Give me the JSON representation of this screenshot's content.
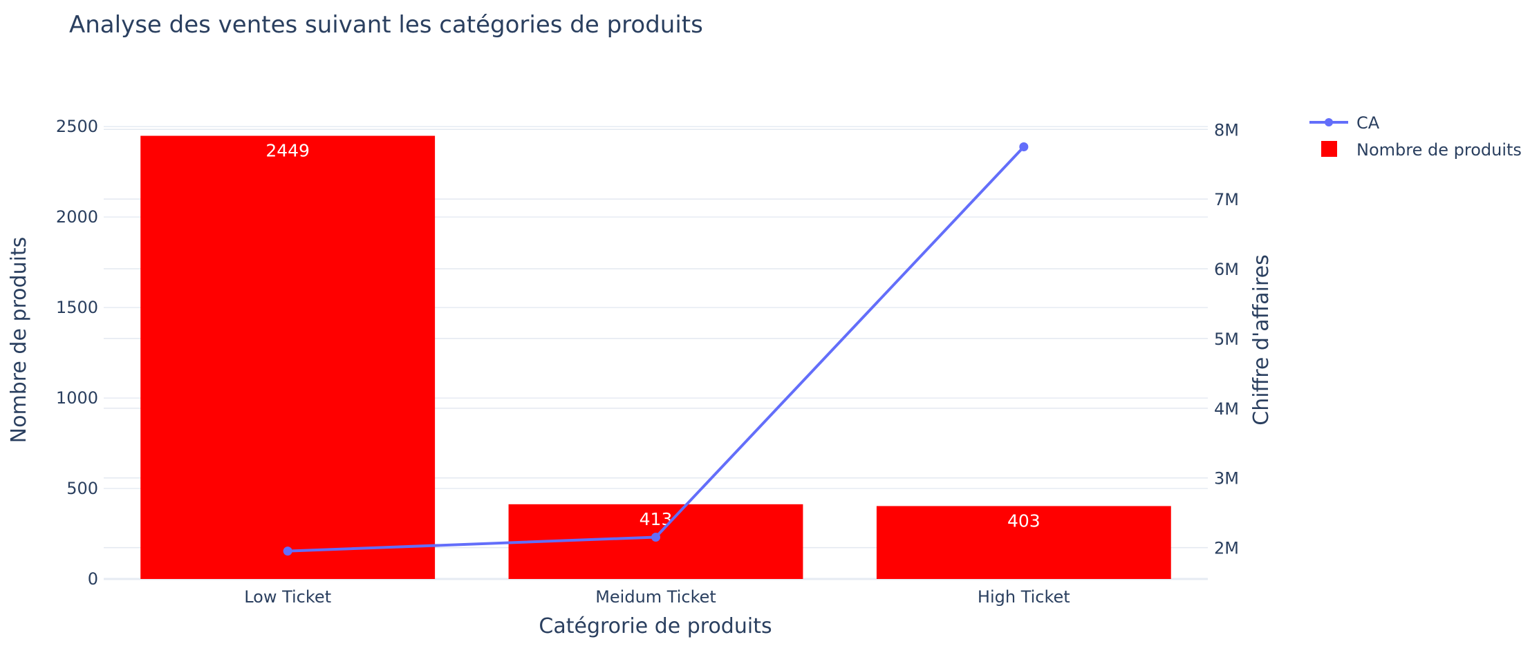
{
  "chart_data": {
    "type": "bar",
    "title": "Analyse des ventes suivant les catégories de produits",
    "xlabel": "Catégrorie de produits",
    "ylabel": "Nombre de produits",
    "y2label": "Chiffre d'affaires",
    "categories": [
      "Low Ticket",
      "Meidum Ticket",
      "High Ticket"
    ],
    "ylim": [
      0,
      2600
    ],
    "y2lim": [
      1550000,
      8300000
    ],
    "yticks": [
      0,
      500,
      1000,
      1500,
      2000,
      2500
    ],
    "yticklabels": [
      "0",
      "500",
      "1000",
      "1500",
      "2000",
      "2500"
    ],
    "y2ticks": [
      2000000,
      3000000,
      4000000,
      5000000,
      6000000,
      7000000,
      8000000
    ],
    "y2ticklabels": [
      "2M",
      "3M",
      "4M",
      "5M",
      "6M",
      "7M",
      "8M"
    ],
    "grid": true,
    "legend_position": "top-right",
    "series": [
      {
        "name": "CA",
        "type": "line",
        "axis": "y2",
        "color": "#636efa",
        "values": [
          1950000,
          2150000,
          7750000
        ]
      },
      {
        "name": "Nombre de produits",
        "type": "bar",
        "axis": "y",
        "color": "#ff0000",
        "values": [
          2449,
          413,
          403
        ],
        "labels": [
          "2449",
          "413",
          "403"
        ]
      }
    ]
  }
}
